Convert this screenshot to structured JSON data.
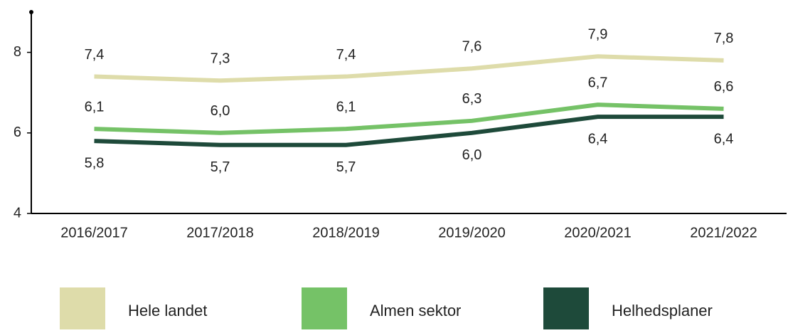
{
  "chart_data": {
    "type": "line",
    "categories": [
      "2016/2017",
      "2017/2018",
      "2018/2019",
      "2019/2020",
      "2020/2021",
      "2021/2022"
    ],
    "series": [
      {
        "name": "Hele landet",
        "color": "#dedcaa",
        "values": [
          7.4,
          7.3,
          7.4,
          7.6,
          7.9,
          7.8
        ],
        "value_labels": [
          "7,4",
          "7,3",
          "7,4",
          "7,6",
          "7,9",
          "7,8"
        ]
      },
      {
        "name": "Almen sektor",
        "color": "#75c267",
        "values": [
          6.1,
          6.0,
          6.1,
          6.3,
          6.7,
          6.6
        ],
        "value_labels": [
          "6,1",
          "6,0",
          "6,1",
          "6,3",
          "6,7",
          "6,6"
        ]
      },
      {
        "name": "Helhedsplaner",
        "color": "#1e4a3a",
        "values": [
          5.8,
          5.7,
          5.7,
          6.0,
          6.4,
          6.4
        ],
        "value_labels": [
          "5,8",
          "5,7",
          "5,7",
          "6,0",
          "6,4",
          "6,4"
        ]
      }
    ],
    "ylim": [
      4,
      9
    ],
    "yticks": [
      4,
      6,
      8
    ],
    "legend": "bottom"
  }
}
